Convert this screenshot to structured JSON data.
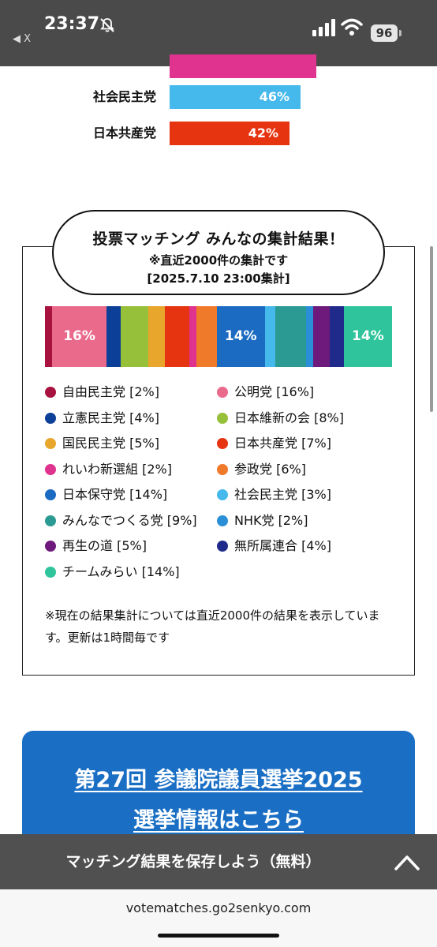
{
  "status_bar": {
    "time": "23:37",
    "back_label": "◀ X",
    "battery": "96",
    "icons": [
      "bell-slash-icon",
      "signal-icon",
      "wifi-icon",
      "battery-icon"
    ]
  },
  "top_results": [
    {
      "party": "",
      "value": "",
      "color": "#e0338f"
    },
    {
      "party": "社会民主党",
      "value": "46%",
      "color": "#45b8ec"
    },
    {
      "party": "日本共産党",
      "value": "42%",
      "color": "#e5340f"
    }
  ],
  "card": {
    "title": "投票マッチング みんなの集計結果！",
    "subtitle": "※直近2000件の集計です",
    "timestamp": "[2025.7.10 23:00集計]",
    "note": "※現在の結果集計については直近2000件の結果を表示しています。更新は1時間毎です"
  },
  "chart_data": {
    "type": "bar",
    "orientation": "stacked-horizontal-100%",
    "categories": [
      "自由民主党",
      "公明党",
      "立憲民主党",
      "日本維新の会",
      "国民民主党",
      "日本共産党",
      "れいわ新選組",
      "参政党",
      "日本保守党",
      "社会民主党",
      "みんなでつくる党",
      "NHK党",
      "再生の道",
      "無所属連合",
      "チームみらい"
    ],
    "values": [
      2,
      16,
      4,
      8,
      5,
      7,
      2,
      6,
      14,
      3,
      9,
      2,
      5,
      4,
      14
    ],
    "colors": [
      "#a7123f",
      "#ea6a8c",
      "#0c3f97",
      "#96bf3a",
      "#e8a72c",
      "#e5340f",
      "#e0338f",
      "#ef7a2a",
      "#1c6bc2",
      "#45b8ec",
      "#2a9a93",
      "#2a8fd6",
      "#6e1a7c",
      "#1f2a8a",
      "#2fc49b"
    ],
    "bar_labels": {
      "1": "16%",
      "8": "14%",
      "14": "14%"
    }
  },
  "legend": [
    {
      "label": "自由民主党 [2%]",
      "color": "#a7123f"
    },
    {
      "label": "公明党 [16%]",
      "color": "#ea6a8c"
    },
    {
      "label": "立憲民主党 [4%]",
      "color": "#0c3f97"
    },
    {
      "label": "日本維新の会 [8%]",
      "color": "#96bf3a"
    },
    {
      "label": "国民民主党 [5%]",
      "color": "#e8a72c"
    },
    {
      "label": "日本共産党 [7%]",
      "color": "#e5340f"
    },
    {
      "label": "れいわ新選組 [2%]",
      "color": "#e0338f"
    },
    {
      "label": "参政党 [6%]",
      "color": "#ef7a2a"
    },
    {
      "label": "日本保守党 [14%]",
      "color": "#1c6bc2"
    },
    {
      "label": "社会民主党 [3%]",
      "color": "#45b8ec"
    },
    {
      "label": "みんなでつくる党 [9%]",
      "color": "#2a9a93"
    },
    {
      "label": "NHK党 [2%]",
      "color": "#2a8fd6"
    },
    {
      "label": "再生の道 [5%]",
      "color": "#6e1a7c"
    },
    {
      "label": "無所属連合 [4%]",
      "color": "#1f2a8a"
    },
    {
      "label": "チームみらい [14%]",
      "color": "#2fc49b"
    }
  ],
  "banner": {
    "line1": "第27回 参議院議員選挙2025",
    "line2": "選挙情報はこちら",
    "color": "#1a6fc4"
  },
  "save_bar": {
    "label": "マッチング結果を保存しよう（無料）",
    "icon": "chevron-up-icon"
  },
  "browser": {
    "url": "votematches.go2senkyo.com"
  }
}
